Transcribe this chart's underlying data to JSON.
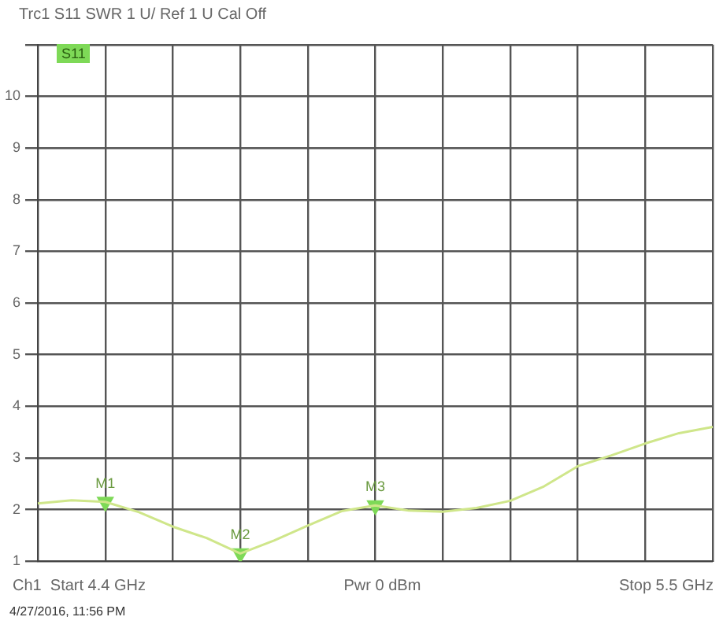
{
  "chart_data": {
    "type": "line",
    "title": "Trc1 S11 SWR 1 U/ Ref 1 U Cal Off",
    "categories": [
      null,
      null,
      null,
      null,
      null,
      null,
      null,
      null,
      null,
      null,
      null,
      null,
      null,
      null,
      null,
      null,
      null,
      null,
      null,
      null,
      null
    ],
    "series": [
      {
        "color": "#cfe68a",
        "values": [
          2.12,
          2.18,
          2.15,
          1.95,
          1.67,
          1.45,
          1.15,
          1.4,
          1.69,
          1.97,
          2.08,
          1.98,
          1.96,
          2.03,
          2.17,
          2.45,
          2.84,
          3.05,
          3.28,
          3.48,
          3.6
        ]
      },
      {
        "type": "scatter",
        "marker": "triangle",
        "color": "#7ed957",
        "values": [
          null,
          null,
          2.15,
          null,
          null,
          null,
          1.15,
          null,
          null,
          null,
          2.08,
          null,
          null,
          null,
          null,
          null,
          null,
          null,
          null,
          null,
          null
        ],
        "value_labels": [
          null,
          null,
          "M1",
          null,
          null,
          null,
          "M2",
          null,
          null,
          null,
          "M3",
          null,
          null,
          null,
          null,
          null,
          null,
          null,
          null,
          null,
          null
        ]
      }
    ],
    "ylim": [
      1,
      11
    ],
    "yticks": [
      1,
      2,
      3,
      4,
      5,
      6,
      7,
      8,
      9,
      10,
      {
        "value": 11,
        "label": null
      }
    ],
    "tick_labels": "y",
    "grid": true,
    "legend": false,
    "marker": "none",
    "line_style": "solid",
    "annotations": [
      "S11",
      "Ch1  Start 4.4 GHz",
      "Pwr 0 dBm",
      "Stop 5.5 GHz",
      "4/27/2016, 11:56 PM"
    ]
  }
}
